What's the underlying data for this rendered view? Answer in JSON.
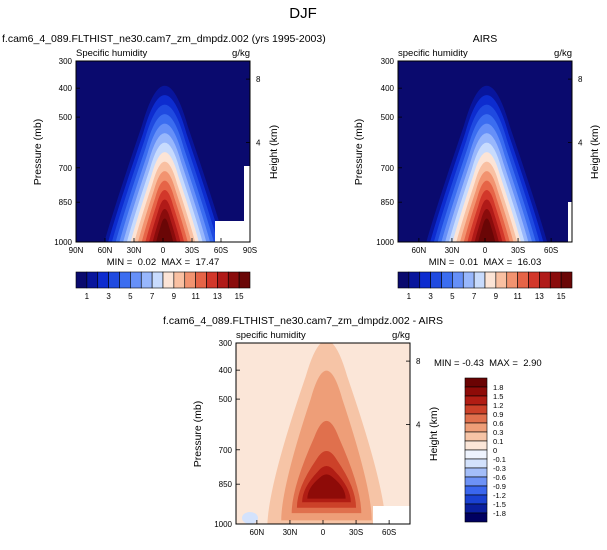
{
  "page_title": "DJF",
  "chart_data": [
    {
      "type": "heatmap",
      "id": "model",
      "title": "f.cam6_4_089.FLTHIST_ne30.cam7_zm_dmpdz.002 (yrs 1995-2003)",
      "left_label": "Specific humidity",
      "right_label": "g/kg",
      "ylabel": "Pressure (mb)",
      "y2label": "Height (km)",
      "y_ticks": [
        "300",
        "400",
        "500",
        "700",
        "850",
        "1000"
      ],
      "y2_ticks": [
        "8",
        "4"
      ],
      "x_ticks": [
        "90N",
        "60N",
        "30N",
        "0",
        "30S",
        "60S",
        "90S"
      ],
      "min": 0.02,
      "max": 17.47,
      "stats_text": "MIN =  0.02  MAX =  17.47",
      "colorbar_labels": [
        "1",
        "3",
        "5",
        "7",
        "9",
        "11",
        "13",
        "15"
      ]
    },
    {
      "type": "heatmap",
      "id": "obs",
      "title": "AIRS",
      "left_label": "specific humidity",
      "right_label": "g/kg",
      "ylabel": "Pressure (mb)",
      "y2label": "Height (km)",
      "y_ticks": [
        "300",
        "400",
        "500",
        "700",
        "850",
        "1000"
      ],
      "y2_ticks": [
        "8",
        "4"
      ],
      "x_ticks": [
        "60N",
        "30N",
        "0",
        "30S",
        "60S"
      ],
      "min": 0.01,
      "max": 16.03,
      "stats_text": "MIN =  0.01  MAX =  16.03",
      "colorbar_labels": [
        "1",
        "3",
        "5",
        "7",
        "9",
        "11",
        "13",
        "15"
      ]
    },
    {
      "type": "heatmap",
      "id": "diff",
      "title": "f.cam6_4_089.FLTHIST_ne30.cam7_zm_dmpdz.002 - AIRS",
      "left_label": "specific humidity",
      "right_label": "g/kg",
      "ylabel": "Pressure (mb)",
      "y2label": "Height (km)",
      "y_ticks": [
        "300",
        "400",
        "500",
        "700",
        "850",
        "1000"
      ],
      "y2_ticks": [
        "8",
        "4"
      ],
      "x_ticks": [
        "60N",
        "30N",
        "0",
        "30S",
        "60S"
      ],
      "min": -0.43,
      "max": 2.9,
      "stats_text": "MIN = -0.43  MAX =  2.90",
      "colorbar_labels": [
        "1.8",
        "1.5",
        "1.2",
        "0.9",
        "0.6",
        "0.3",
        "0.1",
        "0",
        "-0.1",
        "-0.3",
        "-0.6",
        "-0.9",
        "-1.2",
        "-1.5",
        "-1.8"
      ]
    }
  ],
  "seq_colors": [
    "#0a0a6e",
    "#08159c",
    "#0d2ccf",
    "#1f4ae0",
    "#3b6df0",
    "#6690f8",
    "#98b7fc",
    "#c8dbfd",
    "#fce4d6",
    "#f9c0a2",
    "#f29370",
    "#e66447",
    "#d2372a",
    "#b01a18",
    "#8a0c0c",
    "#6a0606"
  ],
  "div_colors": [
    "#000060",
    "#0a1f9e",
    "#1a41d2",
    "#3a66ee",
    "#6d92f6",
    "#a4bef9",
    "#d3e2fc",
    "#eef3fd",
    "#fbe6d8",
    "#f6c4a6",
    "#ee9e78",
    "#e0704d",
    "#cc4129",
    "#b11d14",
    "#8e0b08",
    "#6a0303"
  ]
}
